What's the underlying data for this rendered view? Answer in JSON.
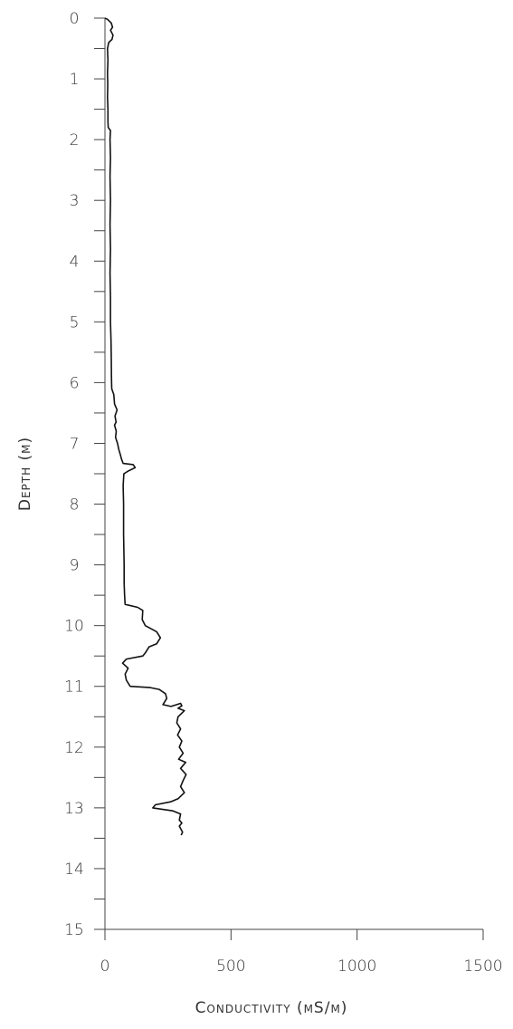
{
  "chart_data": {
    "type": "line",
    "title": "",
    "xlabel": "Conductivity (mS/m)",
    "ylabel": "Depth (m)",
    "xlim": [
      0,
      1500
    ],
    "ylim": [
      0,
      15
    ],
    "y_inverted": true,
    "x_ticks": [
      "0",
      "500",
      "1000",
      "1500"
    ],
    "x_tick_values": [
      0,
      500,
      1000,
      1500
    ],
    "y_ticks": [
      "0",
      "1",
      "2",
      "3",
      "4",
      "5",
      "6",
      "7",
      "8",
      "9",
      "10",
      "11",
      "12",
      "13",
      "14",
      "15"
    ],
    "y_tick_values": [
      0,
      1,
      2,
      3,
      4,
      5,
      6,
      7,
      8,
      9,
      10,
      11,
      12,
      13,
      14,
      15
    ],
    "y_minor_step": 0.5,
    "grid": false,
    "series": [
      {
        "color": "#111111",
        "points": [
          [
            0,
            0.0
          ],
          [
            10,
            0.02
          ],
          [
            25,
            0.08
          ],
          [
            30,
            0.15
          ],
          [
            22,
            0.2
          ],
          [
            32,
            0.28
          ],
          [
            28,
            0.35
          ],
          [
            15,
            0.4
          ],
          [
            10,
            0.5
          ],
          [
            12,
            0.7
          ],
          [
            10,
            0.9
          ],
          [
            11,
            1.1
          ],
          [
            10,
            1.3
          ],
          [
            12,
            1.5
          ],
          [
            12,
            1.7
          ],
          [
            13,
            1.8
          ],
          [
            22,
            1.85
          ],
          [
            20,
            2.0
          ],
          [
            22,
            2.3
          ],
          [
            20,
            2.6
          ],
          [
            22,
            3.0
          ],
          [
            20,
            3.4
          ],
          [
            22,
            3.8
          ],
          [
            20,
            4.2
          ],
          [
            22,
            4.6
          ],
          [
            22,
            5.0
          ],
          [
            24,
            5.3
          ],
          [
            25,
            5.6
          ],
          [
            26,
            5.9
          ],
          [
            27,
            6.1
          ],
          [
            35,
            6.2
          ],
          [
            38,
            6.35
          ],
          [
            48,
            6.45
          ],
          [
            40,
            6.55
          ],
          [
            44,
            6.65
          ],
          [
            38,
            6.7
          ],
          [
            45,
            6.8
          ],
          [
            42,
            6.9
          ],
          [
            50,
            7.0
          ],
          [
            55,
            7.1
          ],
          [
            62,
            7.2
          ],
          [
            65,
            7.25
          ],
          [
            72,
            7.33
          ],
          [
            112,
            7.35
          ],
          [
            120,
            7.4
          ],
          [
            95,
            7.45
          ],
          [
            75,
            7.5
          ],
          [
            72,
            7.7
          ],
          [
            74,
            8.0
          ],
          [
            74,
            8.5
          ],
          [
            76,
            9.0
          ],
          [
            76,
            9.3
          ],
          [
            78,
            9.5
          ],
          [
            80,
            9.65
          ],
          [
            130,
            9.7
          ],
          [
            150,
            9.75
          ],
          [
            148,
            9.9
          ],
          [
            160,
            10.0
          ],
          [
            205,
            10.1
          ],
          [
            220,
            10.2
          ],
          [
            205,
            10.3
          ],
          [
            175,
            10.35
          ],
          [
            160,
            10.45
          ],
          [
            150,
            10.5
          ],
          [
            85,
            10.55
          ],
          [
            70,
            10.62
          ],
          [
            92,
            10.7
          ],
          [
            80,
            10.8
          ],
          [
            85,
            10.9
          ],
          [
            100,
            11.0
          ],
          [
            180,
            11.02
          ],
          [
            215,
            11.05
          ],
          [
            240,
            11.12
          ],
          [
            245,
            11.2
          ],
          [
            230,
            11.3
          ],
          [
            262,
            11.33
          ],
          [
            300,
            11.28
          ],
          [
            305,
            11.32
          ],
          [
            290,
            11.36
          ],
          [
            315,
            11.4
          ],
          [
            290,
            11.5
          ],
          [
            285,
            11.6
          ],
          [
            300,
            11.7
          ],
          [
            288,
            11.8
          ],
          [
            305,
            11.9
          ],
          [
            295,
            12.0
          ],
          [
            310,
            12.1
          ],
          [
            292,
            12.2
          ],
          [
            320,
            12.25
          ],
          [
            300,
            12.35
          ],
          [
            322,
            12.45
          ],
          [
            310,
            12.55
          ],
          [
            300,
            12.65
          ],
          [
            315,
            12.75
          ],
          [
            290,
            12.85
          ],
          [
            260,
            12.9
          ],
          [
            200,
            12.95
          ],
          [
            190,
            13.0
          ],
          [
            270,
            13.05
          ],
          [
            300,
            13.1
          ],
          [
            295,
            13.2
          ],
          [
            305,
            13.25
          ],
          [
            295,
            13.3
          ],
          [
            308,
            13.4
          ],
          [
            302,
            13.45
          ]
        ]
      }
    ]
  }
}
